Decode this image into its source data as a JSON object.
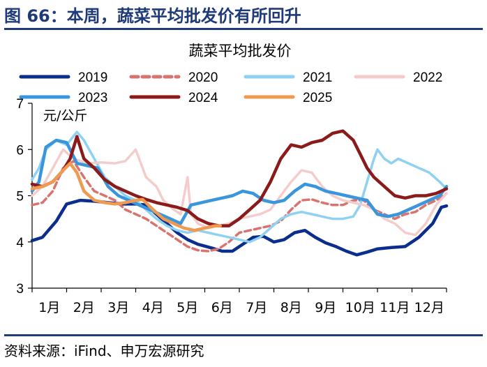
{
  "figure": {
    "title": "图 66：本周，蔬菜平均批发价有所回升",
    "source": "资料来源：iFind、申万宏源研究"
  },
  "chart_data": {
    "type": "line",
    "title": "蔬菜平均批发价",
    "ylabel": "元/公斤",
    "xlabel": "",
    "ylim": [
      3,
      7
    ],
    "yticks": [
      3,
      4,
      5,
      6,
      7
    ],
    "x_range": [
      1,
      13
    ],
    "x_unit": "month (1 = start of Jan)",
    "categories": [
      "1月",
      "2月",
      "3月",
      "4月",
      "5月",
      "6月",
      "7月",
      "8月",
      "9月",
      "10月",
      "11月",
      "12月"
    ],
    "grid": false,
    "legend_position": "top",
    "series": [
      {
        "name": "2019",
        "color": "#0b2e8c",
        "width": 4.5,
        "dash": "",
        "points": [
          [
            1.0,
            4.03
          ],
          [
            1.3,
            4.1
          ],
          [
            1.7,
            4.45
          ],
          [
            2.0,
            4.82
          ],
          [
            2.4,
            4.9
          ],
          [
            2.8,
            4.88
          ],
          [
            3.2,
            4.85
          ],
          [
            3.6,
            4.82
          ],
          [
            4.0,
            4.82
          ],
          [
            4.3,
            4.8
          ],
          [
            4.6,
            4.6
          ],
          [
            4.9,
            4.4
          ],
          [
            5.2,
            4.2
          ],
          [
            5.5,
            4.05
          ],
          [
            5.8,
            3.95
          ],
          [
            6.2,
            3.87
          ],
          [
            6.5,
            3.8
          ],
          [
            6.8,
            3.8
          ],
          [
            7.1,
            3.95
          ],
          [
            7.4,
            4.1
          ],
          [
            7.7,
            4.12
          ],
          [
            8.0,
            4.0
          ],
          [
            8.3,
            4.05
          ],
          [
            8.6,
            4.2
          ],
          [
            8.9,
            4.25
          ],
          [
            9.2,
            4.1
          ],
          [
            9.5,
            3.98
          ],
          [
            9.8,
            3.9
          ],
          [
            10.1,
            3.8
          ],
          [
            10.4,
            3.72
          ],
          [
            10.7,
            3.78
          ],
          [
            11.0,
            3.85
          ],
          [
            11.4,
            3.88
          ],
          [
            11.8,
            3.9
          ],
          [
            12.2,
            4.1
          ],
          [
            12.6,
            4.4
          ],
          [
            12.85,
            4.75
          ],
          [
            13.0,
            4.78
          ]
        ]
      },
      {
        "name": "2020",
        "color": "#d9736e",
        "width": 3.5,
        "dash": "9 5",
        "points": [
          [
            1.0,
            4.8
          ],
          [
            1.3,
            4.85
          ],
          [
            1.6,
            5.1
          ],
          [
            1.9,
            5.6
          ],
          [
            2.2,
            5.75
          ],
          [
            2.5,
            5.4
          ],
          [
            2.8,
            5.1
          ],
          [
            3.1,
            5.0
          ],
          [
            3.4,
            4.9
          ],
          [
            3.7,
            4.7
          ],
          [
            4.0,
            4.6
          ],
          [
            4.3,
            4.5
          ],
          [
            4.6,
            4.35
          ],
          [
            4.9,
            4.2
          ],
          [
            5.2,
            4.05
          ],
          [
            5.5,
            3.9
          ],
          [
            5.8,
            3.82
          ],
          [
            6.1,
            3.8
          ],
          [
            6.4,
            3.85
          ],
          [
            6.7,
            4.0
          ],
          [
            7.0,
            4.2
          ],
          [
            7.3,
            4.25
          ],
          [
            7.6,
            4.3
          ],
          [
            7.9,
            4.35
          ],
          [
            8.2,
            4.45
          ],
          [
            8.5,
            4.7
          ],
          [
            8.8,
            4.9
          ],
          [
            9.1,
            4.92
          ],
          [
            9.4,
            4.85
          ],
          [
            9.7,
            4.8
          ],
          [
            10.0,
            4.8
          ],
          [
            10.3,
            4.9
          ],
          [
            10.6,
            4.9
          ],
          [
            10.9,
            4.7
          ],
          [
            11.2,
            4.6
          ],
          [
            11.5,
            4.5
          ],
          [
            11.8,
            4.6
          ],
          [
            12.1,
            4.65
          ],
          [
            12.4,
            4.8
          ],
          [
            12.7,
            4.9
          ],
          [
            13.0,
            5.05
          ]
        ]
      },
      {
        "name": "2021",
        "color": "#8fd1f2",
        "width": 3.5,
        "dash": "",
        "points": [
          [
            1.0,
            5.35
          ],
          [
            1.2,
            5.6
          ],
          [
            1.4,
            6.0
          ],
          [
            1.7,
            6.2
          ],
          [
            2.0,
            6.1
          ],
          [
            2.3,
            6.38
          ],
          [
            2.5,
            6.2
          ],
          [
            2.8,
            5.8
          ],
          [
            3.1,
            5.4
          ],
          [
            3.4,
            5.2
          ],
          [
            3.7,
            5.0
          ],
          [
            4.0,
            4.9
          ],
          [
            4.3,
            4.7
          ],
          [
            4.6,
            4.5
          ],
          [
            4.9,
            4.35
          ],
          [
            5.2,
            4.25
          ],
          [
            5.5,
            4.2
          ],
          [
            5.8,
            4.25
          ],
          [
            6.1,
            4.2
          ],
          [
            6.4,
            4.15
          ],
          [
            6.7,
            4.1
          ],
          [
            7.0,
            4.05
          ],
          [
            7.3,
            4.0
          ],
          [
            7.6,
            4.1
          ],
          [
            7.9,
            4.3
          ],
          [
            8.2,
            4.5
          ],
          [
            8.5,
            4.6
          ],
          [
            8.8,
            4.65
          ],
          [
            9.1,
            4.6
          ],
          [
            9.4,
            4.55
          ],
          [
            9.7,
            4.5
          ],
          [
            10.0,
            4.5
          ],
          [
            10.3,
            4.55
          ],
          [
            10.5,
            4.8
          ],
          [
            10.7,
            5.3
          ],
          [
            10.9,
            5.8
          ],
          [
            11.0,
            6.0
          ],
          [
            11.2,
            5.8
          ],
          [
            11.4,
            5.7
          ],
          [
            11.6,
            5.8
          ],
          [
            11.9,
            5.7
          ],
          [
            12.2,
            5.6
          ],
          [
            12.5,
            5.5
          ],
          [
            12.8,
            5.3
          ],
          [
            13.0,
            5.15
          ]
        ]
      },
      {
        "name": "2022",
        "color": "#f4cccc",
        "width": 3.5,
        "dash": "",
        "points": [
          [
            1.0,
            5.0
          ],
          [
            1.3,
            5.2
          ],
          [
            1.6,
            5.6
          ],
          [
            1.9,
            6.0
          ],
          [
            2.2,
            5.8
          ],
          [
            2.6,
            5.7
          ],
          [
            3.0,
            5.72
          ],
          [
            3.4,
            5.7
          ],
          [
            3.7,
            5.75
          ],
          [
            4.0,
            6.0
          ],
          [
            4.3,
            5.4
          ],
          [
            4.6,
            5.2
          ],
          [
            4.8,
            4.9
          ],
          [
            5.1,
            4.7
          ],
          [
            5.3,
            4.6
          ],
          [
            5.5,
            5.4
          ],
          [
            5.6,
            4.6
          ],
          [
            5.8,
            4.4
          ],
          [
            6.1,
            4.3
          ],
          [
            6.4,
            4.35
          ],
          [
            6.7,
            4.4
          ],
          [
            7.0,
            4.5
          ],
          [
            7.3,
            4.55
          ],
          [
            7.6,
            4.6
          ],
          [
            7.9,
            4.7
          ],
          [
            8.2,
            5.0
          ],
          [
            8.5,
            5.3
          ],
          [
            8.8,
            5.55
          ],
          [
            9.1,
            5.5
          ],
          [
            9.4,
            5.2
          ],
          [
            9.7,
            5.0
          ],
          [
            10.0,
            4.9
          ],
          [
            10.3,
            4.85
          ],
          [
            10.6,
            4.8
          ],
          [
            10.9,
            4.7
          ],
          [
            11.2,
            4.5
          ],
          [
            11.5,
            4.4
          ],
          [
            11.8,
            4.2
          ],
          [
            12.1,
            4.15
          ],
          [
            12.4,
            4.4
          ],
          [
            12.7,
            4.8
          ],
          [
            13.0,
            5.05
          ]
        ]
      },
      {
        "name": "2023",
        "color": "#3a96dc",
        "width": 4.5,
        "dash": "",
        "points": [
          [
            1.0,
            5.1
          ],
          [
            1.2,
            5.3
          ],
          [
            1.4,
            6.05
          ],
          [
            1.7,
            6.2
          ],
          [
            2.0,
            6.15
          ],
          [
            2.3,
            5.7
          ],
          [
            2.6,
            5.65
          ],
          [
            2.9,
            5.6
          ],
          [
            3.2,
            5.2
          ],
          [
            3.5,
            5.0
          ],
          [
            3.8,
            4.9
          ],
          [
            4.1,
            4.8
          ],
          [
            4.4,
            4.7
          ],
          [
            4.7,
            4.6
          ],
          [
            5.0,
            4.5
          ],
          [
            5.3,
            4.4
          ],
          [
            5.6,
            4.8
          ],
          [
            5.9,
            4.85
          ],
          [
            6.2,
            4.9
          ],
          [
            6.5,
            4.95
          ],
          [
            6.8,
            5.0
          ],
          [
            7.1,
            5.1
          ],
          [
            7.4,
            5.05
          ],
          [
            7.7,
            4.9
          ],
          [
            8.0,
            4.85
          ],
          [
            8.3,
            4.9
          ],
          [
            8.6,
            5.1
          ],
          [
            8.9,
            5.25
          ],
          [
            9.2,
            5.2
          ],
          [
            9.5,
            5.1
          ],
          [
            9.8,
            5.05
          ],
          [
            10.1,
            5.0
          ],
          [
            10.4,
            4.95
          ],
          [
            10.7,
            4.9
          ],
          [
            11.0,
            4.6
          ],
          [
            11.3,
            4.55
          ],
          [
            11.6,
            4.6
          ],
          [
            11.9,
            4.7
          ],
          [
            12.2,
            4.8
          ],
          [
            12.5,
            4.9
          ],
          [
            12.8,
            5.0
          ],
          [
            13.0,
            5.2
          ]
        ]
      },
      {
        "name": "2024",
        "color": "#8b1a1a",
        "width": 4.5,
        "dash": "",
        "points": [
          [
            1.0,
            5.25
          ],
          [
            1.3,
            5.2
          ],
          [
            1.6,
            5.3
          ],
          [
            1.9,
            5.55
          ],
          [
            2.1,
            5.8
          ],
          [
            2.3,
            6.28
          ],
          [
            2.5,
            5.8
          ],
          [
            2.8,
            5.6
          ],
          [
            3.1,
            5.35
          ],
          [
            3.4,
            5.2
          ],
          [
            3.7,
            5.1
          ],
          [
            4.0,
            5.0
          ],
          [
            4.3,
            4.92
          ],
          [
            4.6,
            4.85
          ],
          [
            4.9,
            4.8
          ],
          [
            5.2,
            4.75
          ],
          [
            5.5,
            4.68
          ],
          [
            5.8,
            4.5
          ],
          [
            6.1,
            4.4
          ],
          [
            6.4,
            4.35
          ],
          [
            6.7,
            4.35
          ],
          [
            7.0,
            4.5
          ],
          [
            7.3,
            4.7
          ],
          [
            7.6,
            4.9
          ],
          [
            7.9,
            5.3
          ],
          [
            8.2,
            5.8
          ],
          [
            8.5,
            6.1
          ],
          [
            8.8,
            6.05
          ],
          [
            9.1,
            6.15
          ],
          [
            9.4,
            6.2
          ],
          [
            9.7,
            6.35
          ],
          [
            10.0,
            6.4
          ],
          [
            10.3,
            6.2
          ],
          [
            10.5,
            5.9
          ],
          [
            10.7,
            5.6
          ],
          [
            10.9,
            5.4
          ],
          [
            11.2,
            5.2
          ],
          [
            11.5,
            5.0
          ],
          [
            11.8,
            4.95
          ],
          [
            12.1,
            5.0
          ],
          [
            12.4,
            5.0
          ],
          [
            12.7,
            5.05
          ],
          [
            13.0,
            5.15
          ]
        ]
      },
      {
        "name": "2025",
        "color": "#ef9a50",
        "width": 4.5,
        "dash": "",
        "points": [
          [
            1.0,
            5.15
          ],
          [
            1.3,
            5.2
          ],
          [
            1.6,
            5.3
          ],
          [
            1.9,
            5.55
          ],
          [
            2.1,
            5.7
          ],
          [
            2.3,
            5.5
          ],
          [
            2.5,
            5.1
          ],
          [
            2.8,
            4.9
          ],
          [
            3.1,
            4.85
          ],
          [
            3.4,
            4.82
          ],
          [
            3.7,
            4.85
          ],
          [
            4.0,
            4.9
          ],
          [
            4.2,
            4.92
          ],
          [
            4.5,
            4.7
          ],
          [
            4.8,
            4.5
          ],
          [
            5.1,
            4.4
          ],
          [
            5.4,
            4.3
          ],
          [
            5.7,
            4.25
          ],
          [
            6.0,
            4.3
          ],
          [
            6.3,
            4.35
          ],
          [
            6.45,
            4.35
          ]
        ]
      }
    ]
  }
}
